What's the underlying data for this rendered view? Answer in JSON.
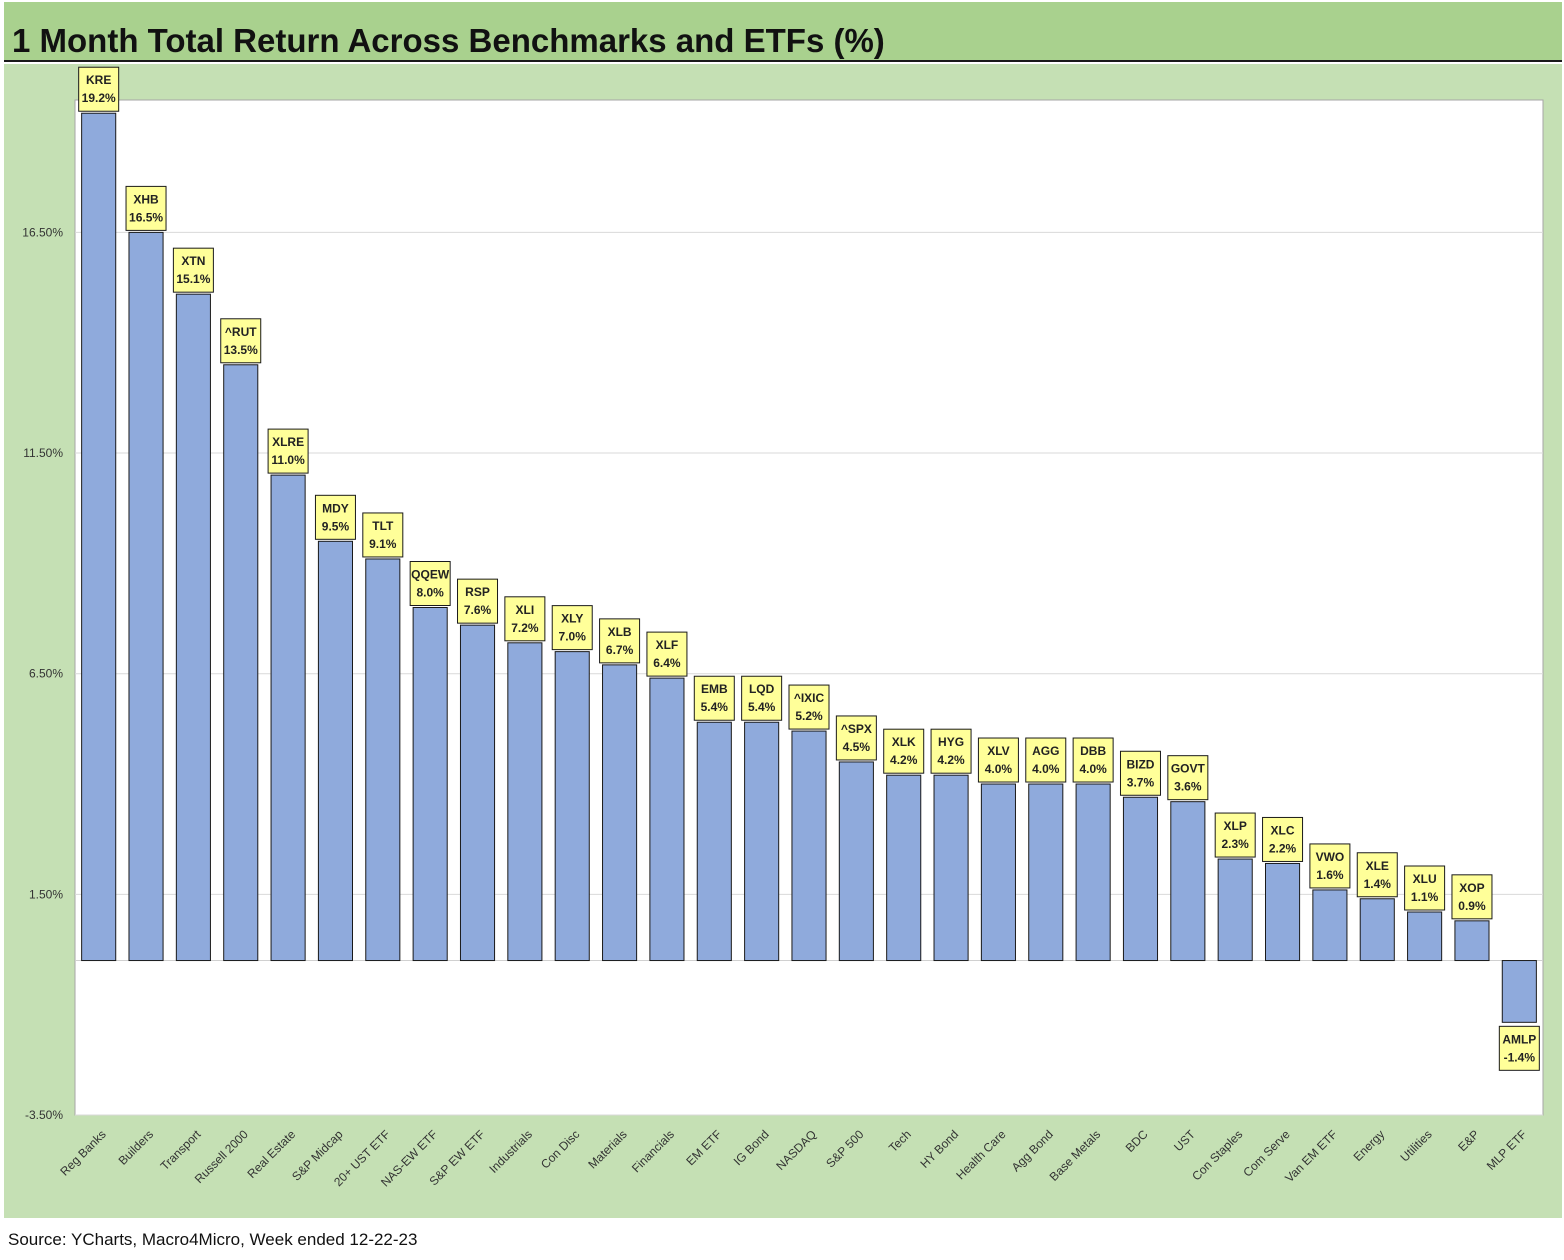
{
  "title": "1 Month Total Return Across Benchmarks and ETFs (%)",
  "source": "Source: YCharts, Macro4Micro, Week ended 12-22-23",
  "colors": {
    "header_bg": "#a9d18e",
    "chart_bg": "#c5e0b4",
    "plot_bg": "#ffffff",
    "bar_fill": "#8faadc",
    "label_bg": "#ffff99",
    "gridline": "#d9d9d9"
  },
  "chart_data": {
    "type": "bar",
    "title": "1 Month Total Return Across Benchmarks and ETFs (%)",
    "xlabel": "",
    "ylabel": "",
    "ylim": [
      -3.5,
      19.5
    ],
    "yticks": [
      -3.5,
      1.5,
      6.5,
      11.5,
      16.5
    ],
    "ytick_labels": [
      "-3.50%",
      "1.50%",
      "6.50%",
      "11.50%",
      "16.50%"
    ],
    "grid": true,
    "legend": "none",
    "categories": [
      "Reg Banks",
      "Builders",
      "Transport",
      "Russell 2000",
      "Real Estate",
      "S&P Midcap",
      "20+ UST ETF",
      "NAS-EW ETF",
      "S&P EW ETF",
      "Industrials",
      "Con Disc",
      "Materials",
      "Financials",
      "EM ETF",
      "IG Bond",
      "NASDAQ",
      "S&P 500",
      "Tech",
      "HY Bond",
      "Health Care",
      "Agg Bond",
      "Base Metals",
      "BDC",
      "UST",
      "Con Staples",
      "Com Serve",
      "Van EM ETF",
      "Energy",
      "Utilities",
      "E&P",
      "MLP ETF"
    ],
    "tickers": [
      "KRE",
      "XHB",
      "XTN",
      "^RUT",
      "XLRE",
      "MDY",
      "TLT",
      "QQEW",
      "RSP",
      "XLI",
      "XLY",
      "XLB",
      "XLF",
      "EMB",
      "LQD",
      "^IXIC",
      "^SPX",
      "XLK",
      "HYG",
      "XLV",
      "AGG",
      "DBB",
      "BIZD",
      "GOVT",
      "XLP",
      "XLC",
      "VWO",
      "XLE",
      "XLU",
      "XOP",
      "AMLP"
    ],
    "values": [
      19.2,
      16.5,
      15.1,
      13.5,
      11.0,
      9.5,
      9.1,
      8.0,
      7.6,
      7.2,
      7.0,
      6.7,
      6.4,
      5.4,
      5.4,
      5.2,
      4.5,
      4.2,
      4.2,
      4.0,
      4.0,
      4.0,
      3.7,
      3.6,
      2.3,
      2.2,
      1.6,
      1.4,
      1.1,
      0.9,
      -1.4
    ],
    "value_labels": [
      "19.2%",
      "16.5%",
      "15.1%",
      "13.5%",
      "11.0%",
      "9.5%",
      "9.1%",
      "8.0%",
      "7.6%",
      "7.2%",
      "7.0%",
      "6.7%",
      "6.4%",
      "5.4%",
      "5.4%",
      "5.2%",
      "4.5%",
      "4.2%",
      "4.2%",
      "4.0%",
      "4.0%",
      "4.0%",
      "3.7%",
      "3.6%",
      "2.3%",
      "2.2%",
      "1.6%",
      "1.4%",
      "1.1%",
      "0.9%",
      "-1.4%"
    ]
  }
}
